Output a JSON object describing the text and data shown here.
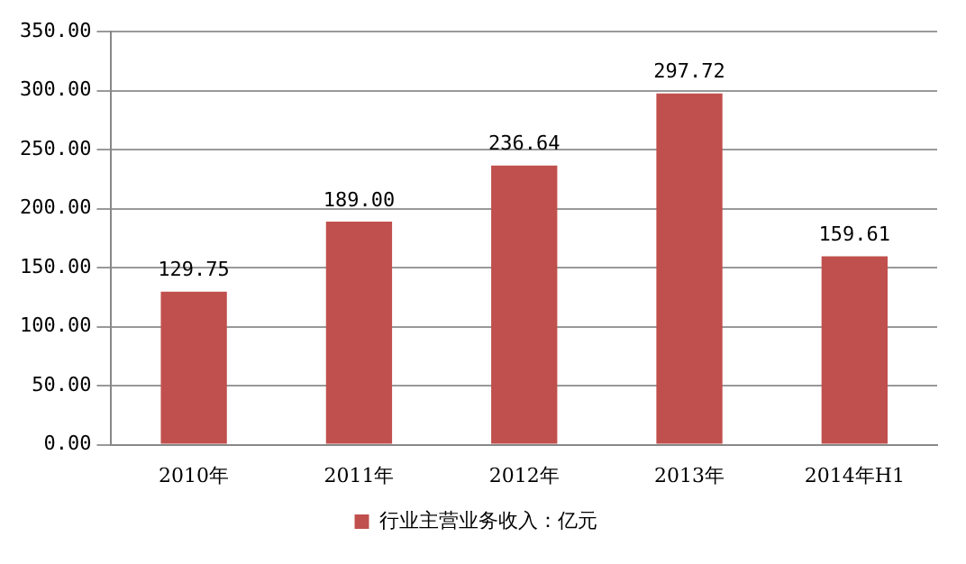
{
  "chart_data": {
    "type": "bar",
    "categories": [
      "2010年",
      "2011年",
      "2012年",
      "2013年",
      "2014年H1"
    ],
    "series": [
      {
        "name": "行业主营业务收入：亿元",
        "color": "#c0504d",
        "values": [
          129.75,
          189.0,
          236.64,
          297.72,
          159.61
        ],
        "value_labels": [
          "129.75",
          "189.00",
          "236.64",
          "297.72",
          "159.61"
        ]
      }
    ],
    "ylim": [
      0,
      350
    ],
    "yticks": [
      {
        "value": 0,
        "label": "0.00"
      },
      {
        "value": 50,
        "label": "50.00"
      },
      {
        "value": 100,
        "label": "100.00"
      },
      {
        "value": 150,
        "label": "150.00"
      },
      {
        "value": 200,
        "label": "200.00"
      },
      {
        "value": 250,
        "label": "250.00"
      },
      {
        "value": 300,
        "label": "300.00"
      },
      {
        "value": 350,
        "label": "350.00"
      }
    ],
    "grid": "y",
    "legend": "bottom"
  }
}
